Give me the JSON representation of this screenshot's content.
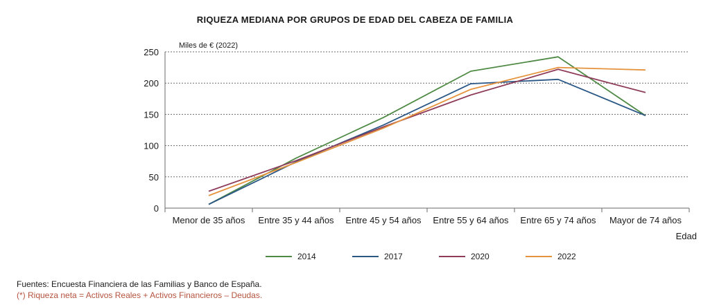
{
  "chart_data": {
    "type": "line",
    "title": "RIQUEZA MEDIANA POR GRUPOS DE EDAD DEL CABEZA DE FAMILIA",
    "ylabel": "Miles de € (2022)",
    "xlabel": "Edad",
    "ylim": [
      0,
      250
    ],
    "yticks": [
      0,
      50,
      100,
      150,
      200,
      250
    ],
    "grid": true,
    "legend_position": "bottom",
    "categories": [
      "Menor de 35 años",
      "Entre 35 y 44 años",
      "Entre 45 y 54 años",
      "Entre 55 y 64 años",
      "Entre 65 y 74 años",
      "Mayor de 74 años"
    ],
    "series": [
      {
        "name": "2014",
        "color": "#4f8a45",
        "values": [
          6,
          80,
          145,
          219,
          242,
          148
        ]
      },
      {
        "name": "2017",
        "color": "#2a5785",
        "values": [
          6,
          74,
          133,
          199,
          206,
          148
        ]
      },
      {
        "name": "2020",
        "color": "#8e3c5a",
        "values": [
          27,
          76,
          130,
          181,
          222,
          185
        ]
      },
      {
        "name": "2022",
        "color": "#e5923b",
        "values": [
          20,
          73,
          128,
          190,
          225,
          221
        ]
      }
    ]
  },
  "footer": {
    "source": "Fuentes: Encuesta Financiera de las Familias y Banco de España.",
    "note": "(*) Riqueza neta = Activos Reales + Activos Financieros – Deudas."
  }
}
